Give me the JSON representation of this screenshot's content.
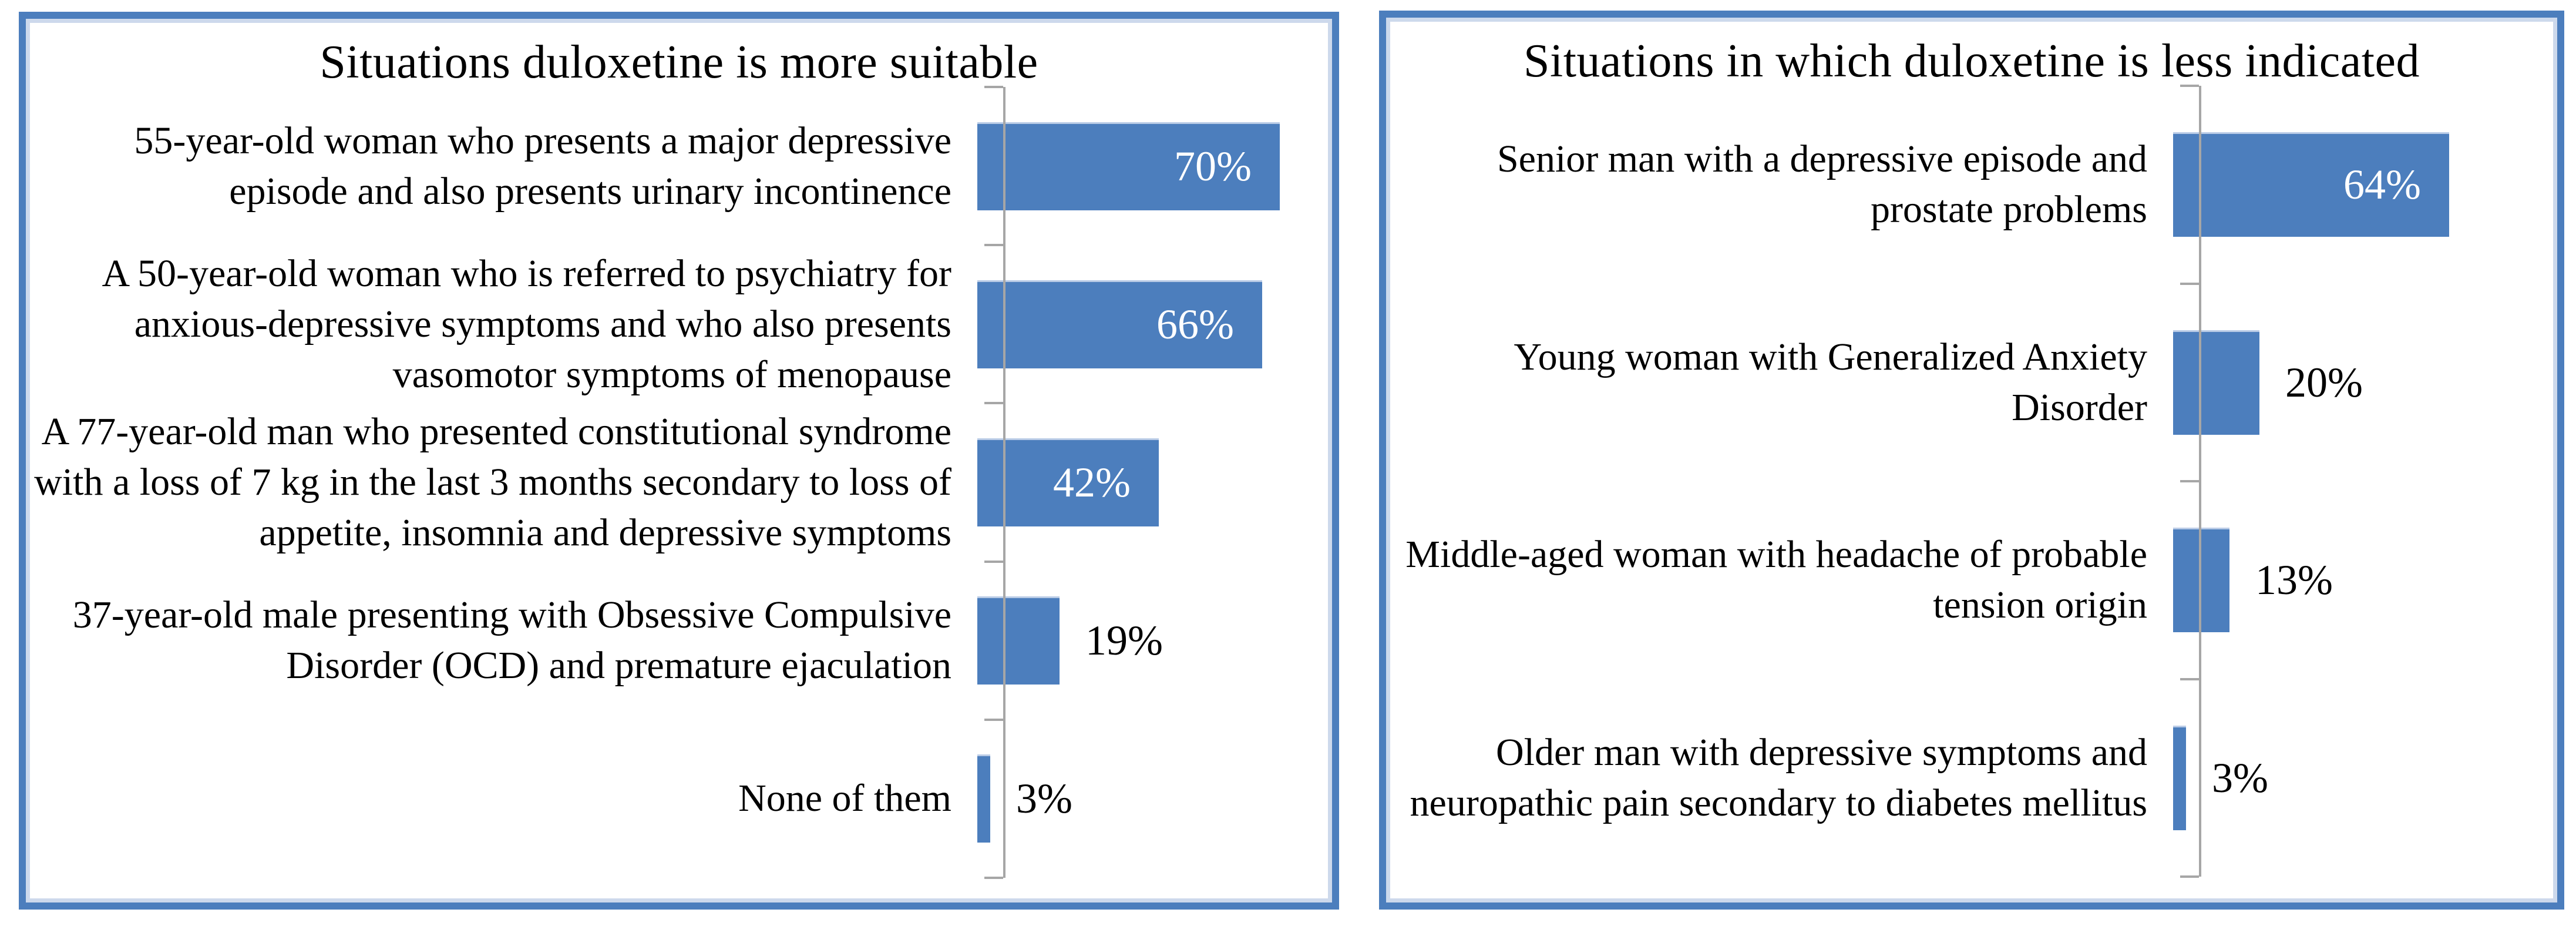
{
  "chart_data": [
    {
      "type": "bar",
      "orientation": "horizontal",
      "title": "Situations duloxetine is more suitable",
      "unit": "%",
      "xlim": [
        0,
        80
      ],
      "grid": false,
      "legend": "none",
      "categories": [
        "55-year-old woman who presents a major depressive\nepisode and also presents urinary incontinence",
        "A 50-year-old woman who is referred to psychiatry for\nanxious-depressive symptoms and who also presents\nvasomotor symptoms of menopause",
        "A 77-year-old man who presented constitutional syndrome\nwith a loss of 7 kg in the last 3 months secondary to loss of\nappetite, insomnia and depressive symptoms",
        "37-year-old male presenting with Obsessive Compulsive\nDisorder (OCD) and premature ejaculation",
        "None of them"
      ],
      "values": [
        70,
        66,
        42,
        19,
        3
      ],
      "value_labels": [
        "70%",
        "66%",
        "42%",
        "19%",
        "3%"
      ]
    },
    {
      "type": "bar",
      "orientation": "horizontal",
      "title": "Situations in which duloxetine is less indicated",
      "unit": "%",
      "xlim": [
        0,
        80
      ],
      "grid": false,
      "legend": "none",
      "categories": [
        "Senior man with a depressive episode and\nprostate problems",
        "Young woman with Generalized Anxiety\nDisorder",
        "Middle-aged woman with headache of probable\ntension origin",
        "Older man with depressive symptoms and\nneuropathic pain secondary to diabetes mellitus"
      ],
      "values": [
        64,
        20,
        13,
        3
      ],
      "value_labels": [
        "64%",
        "20%",
        "13%",
        "3%"
      ]
    }
  ],
  "colors": {
    "bar": "#4C7EBD",
    "panel_border": "#4C7EBD",
    "axis": "#A6A6A6",
    "value_label_inside": "#FFFFFF",
    "value_label_outside": "#000000",
    "text": "#000000"
  }
}
